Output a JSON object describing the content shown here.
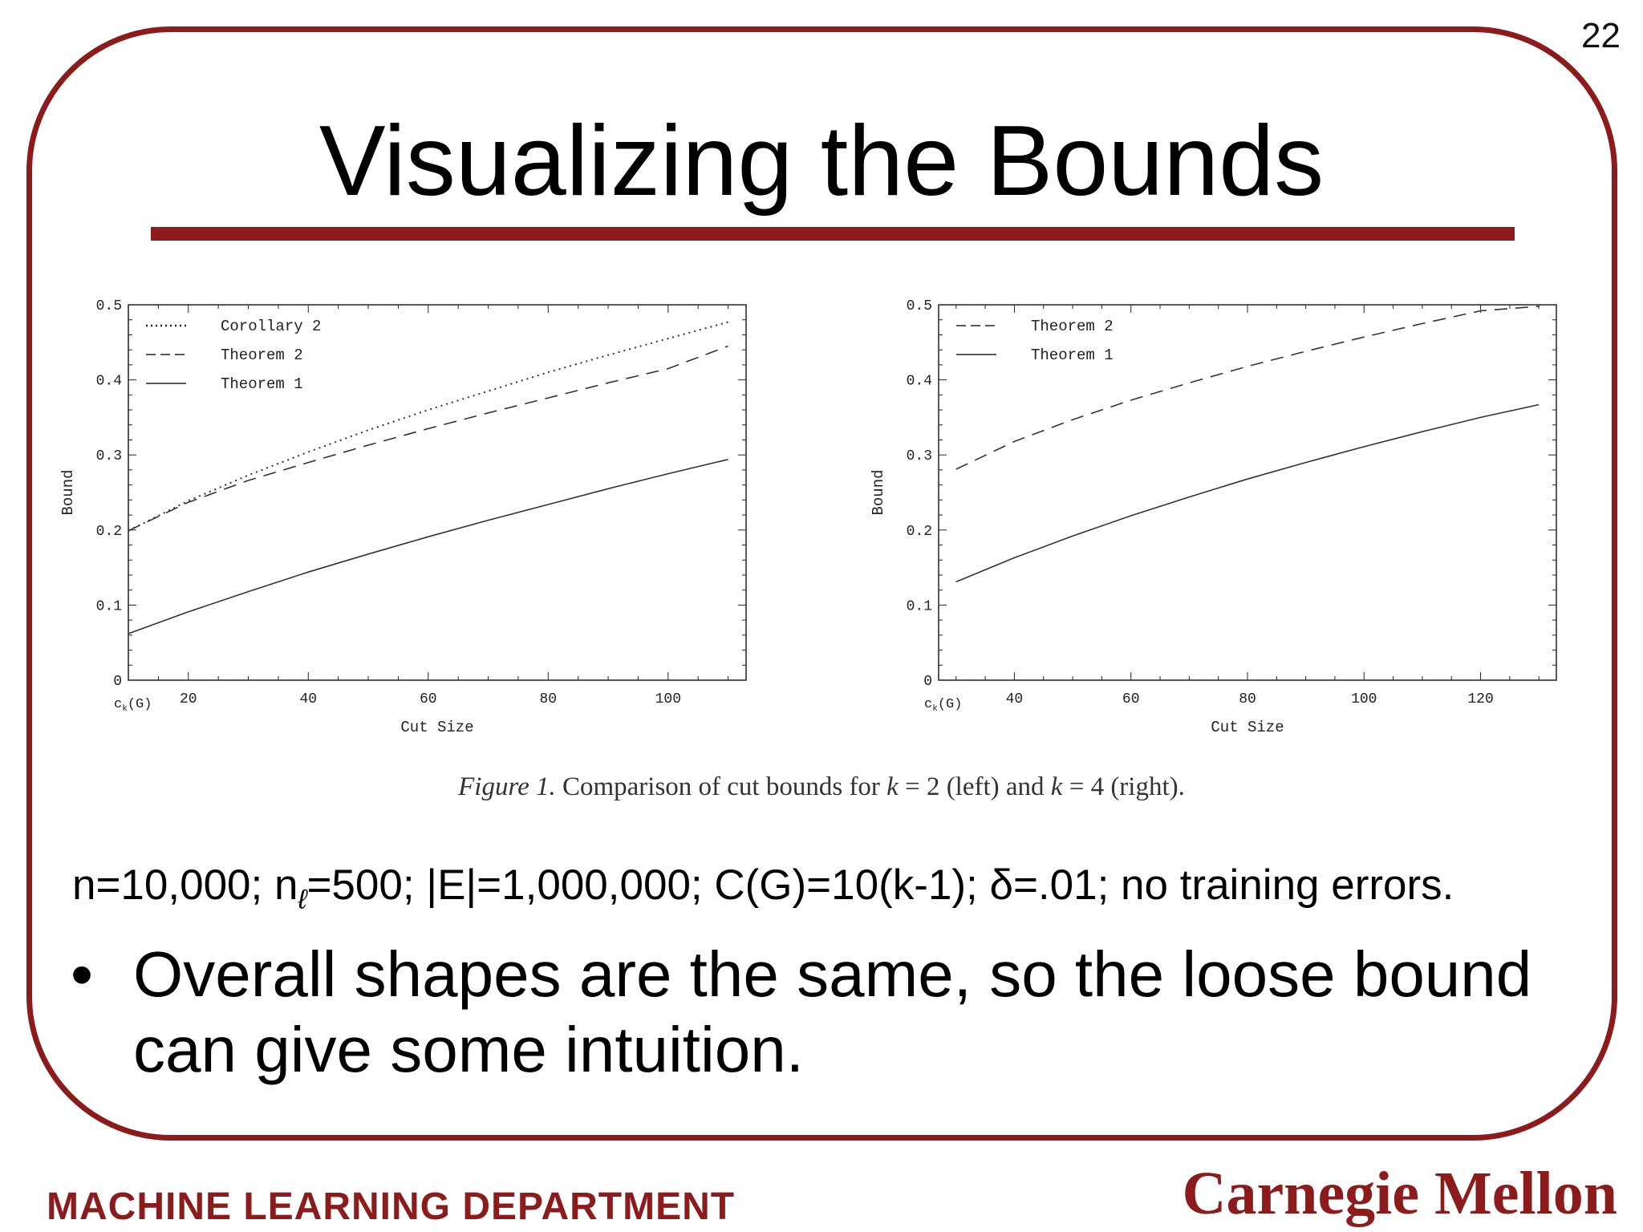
{
  "slide": {
    "number": "22",
    "title": "Visualizing the Bounds",
    "caption": {
      "figure": "Figure 1.",
      "text_pre": "Comparison of cut bounds for ",
      "k1": "k",
      "eq1": " = 2 (left) and ",
      "k2": "k",
      "eq2": " = 4 (right)."
    },
    "params": {
      "part1": "n=10,000; n",
      "sub": "ℓ",
      "part2": "=500; |E|=1,000,000; C(G)=10(k-1); δ=.01; no training errors."
    },
    "bullet": {
      "symbol": "•",
      "text": "Overall shapes are the same, so the loose bound can give some intuition."
    },
    "footer": {
      "department": "MACHINE LEARNING DEPARTMENT",
      "logo_text": "Carnegie Mellon"
    }
  },
  "chart_data": [
    {
      "type": "line",
      "xlabel": "Cut Size",
      "ylabel": "Bound",
      "x_origin_label": "c_k(G)",
      "xlim": [
        10,
        113
      ],
      "ylim": [
        0,
        0.5
      ],
      "xticks": [
        20,
        40,
        60,
        80,
        100
      ],
      "yticks": [
        0,
        0.1,
        0.2,
        0.3,
        0.4,
        0.5
      ],
      "ytick_labels": [
        "0",
        "0.1",
        "0.2",
        "0.3",
        "0.4",
        "0.5"
      ],
      "legend_position": "top-left",
      "series": [
        {
          "name": "Corollary 2",
          "style": "dotted",
          "x": [
            10,
            20,
            30,
            40,
            50,
            60,
            70,
            80,
            90,
            100,
            110
          ],
          "y": [
            0.199,
            0.239,
            0.273,
            0.304,
            0.333,
            0.36,
            0.385,
            0.41,
            0.433,
            0.455,
            0.477
          ]
        },
        {
          "name": "Theorem 2",
          "style": "dashed",
          "x": [
            10,
            20,
            30,
            40,
            50,
            60,
            70,
            80,
            90,
            100,
            110
          ],
          "y": [
            0.199,
            0.237,
            0.266,
            0.29,
            0.313,
            0.335,
            0.356,
            0.376,
            0.396,
            0.415,
            0.445
          ]
        },
        {
          "name": "Theorem 1",
          "style": "solid",
          "x": [
            10,
            20,
            30,
            40,
            50,
            60,
            70,
            80,
            90,
            100,
            110
          ],
          "y": [
            0.062,
            0.091,
            0.118,
            0.144,
            0.168,
            0.191,
            0.213,
            0.234,
            0.255,
            0.275,
            0.294
          ]
        }
      ]
    },
    {
      "type": "line",
      "xlabel": "Cut Size",
      "ylabel": "Bound",
      "x_origin_label": "c_k(G)",
      "xlim": [
        27,
        133
      ],
      "ylim": [
        0,
        0.5
      ],
      "xticks": [
        40,
        60,
        80,
        100,
        120
      ],
      "yticks": [
        0,
        0.1,
        0.2,
        0.3,
        0.4,
        0.5
      ],
      "ytick_labels": [
        "0",
        "0.1",
        "0.2",
        "0.3",
        "0.4",
        "0.5"
      ],
      "legend_position": "top-left",
      "series": [
        {
          "name": "Theorem 2",
          "style": "dashed",
          "x": [
            30,
            40,
            50,
            60,
            70,
            80,
            90,
            100,
            110,
            120,
            130
          ],
          "y": [
            0.281,
            0.318,
            0.347,
            0.373,
            0.396,
            0.418,
            0.438,
            0.457,
            0.475,
            0.492,
            0.498
          ]
        },
        {
          "name": "Theorem 1",
          "style": "solid",
          "x": [
            30,
            40,
            50,
            60,
            70,
            80,
            90,
            100,
            110,
            120,
            130
          ],
          "y": [
            0.131,
            0.163,
            0.192,
            0.219,
            0.244,
            0.268,
            0.29,
            0.311,
            0.331,
            0.35,
            0.367
          ]
        }
      ]
    }
  ]
}
